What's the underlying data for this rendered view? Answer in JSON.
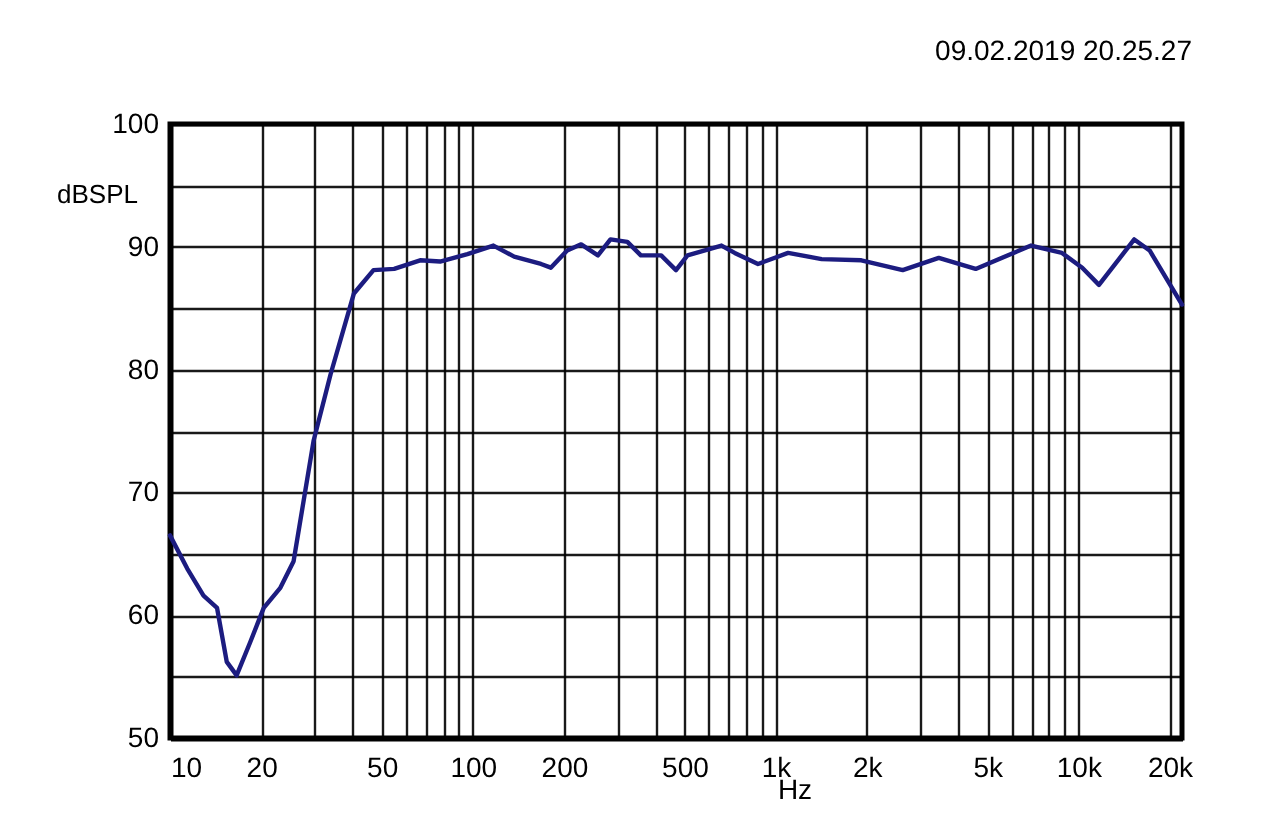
{
  "chart_data": {
    "type": "line",
    "annotations": [
      "09.02.2019 20.25.27"
    ],
    "xlabel": "Hz",
    "ylabel": "dBSPL",
    "x": [
      10,
      11.4,
      12.9,
      14.3,
      15.4,
      16.6,
      18.4,
      20.4,
      23.1,
      25.6,
      29.8,
      33.9,
      40.5,
      47,
      55,
      67,
      78,
      96,
      117,
      137,
      168,
      181,
      205,
      228,
      259,
      285,
      324,
      359,
      419,
      469,
      512,
      663,
      733,
      875,
      1100,
      1420,
      1920,
      2630,
      3460,
      4580,
      6980,
      8830,
      10300,
      11700,
      15300,
      17200,
      22000
    ],
    "series": [
      {
        "color": "#1c1c80",
        "values": [
          66.5,
          63.8,
          61.6,
          60.6,
          56.2,
          55.1,
          57.8,
          60.6,
          62.2,
          64.4,
          74.2,
          79.6,
          86.2,
          88.1,
          88.2,
          88.9,
          88.8,
          89.4,
          90.1,
          89.2,
          88.6,
          88.3,
          89.7,
          90.2,
          89.3,
          90.6,
          90.4,
          89.3,
          89.3,
          88.1,
          89.3,
          90.1,
          89.5,
          88.6,
          89.5,
          89.0,
          88.9,
          88.1,
          89.1,
          88.2,
          90.1,
          89.5,
          88.3,
          86.9,
          90.6,
          89.7,
          85.3
        ]
      }
    ],
    "log": "x",
    "xlim": [
      10,
      22000
    ],
    "ylim": [
      50,
      100
    ],
    "xticks": [
      10,
      20,
      {
        "value": 30,
        "label": null
      },
      {
        "value": 40,
        "label": null
      },
      50,
      {
        "value": 60,
        "label": null
      },
      {
        "value": 70,
        "label": null
      },
      {
        "value": 80,
        "label": null
      },
      {
        "value": 90,
        "label": null
      },
      100,
      200,
      {
        "value": 300,
        "label": null
      },
      {
        "value": 400,
        "label": null
      },
      500,
      {
        "value": 600,
        "label": null
      },
      {
        "value": 700,
        "label": null
      },
      {
        "value": 800,
        "label": null
      },
      {
        "value": 900,
        "label": null
      },
      {
        "value": 1000,
        "label": "1k"
      },
      {
        "value": 2000,
        "label": "2k"
      },
      {
        "value": 3000,
        "label": null
      },
      {
        "value": 4000,
        "label": null
      },
      {
        "value": 5000,
        "label": "5k"
      },
      {
        "value": 6000,
        "label": null
      },
      {
        "value": 7000,
        "label": null
      },
      {
        "value": 8000,
        "label": null
      },
      {
        "value": 9000,
        "label": null
      },
      {
        "value": 10000,
        "label": "10k"
      },
      {
        "value": 20000,
        "label": "20k"
      }
    ],
    "yticks": [
      50,
      {
        "value": 55,
        "label": null
      },
      60,
      {
        "value": 65,
        "label": null
      },
      70,
      {
        "value": 75,
        "label": null
      },
      80,
      {
        "value": 85,
        "label": null
      },
      90,
      {
        "value": 95,
        "label": null
      },
      100
    ],
    "grid": true
  }
}
